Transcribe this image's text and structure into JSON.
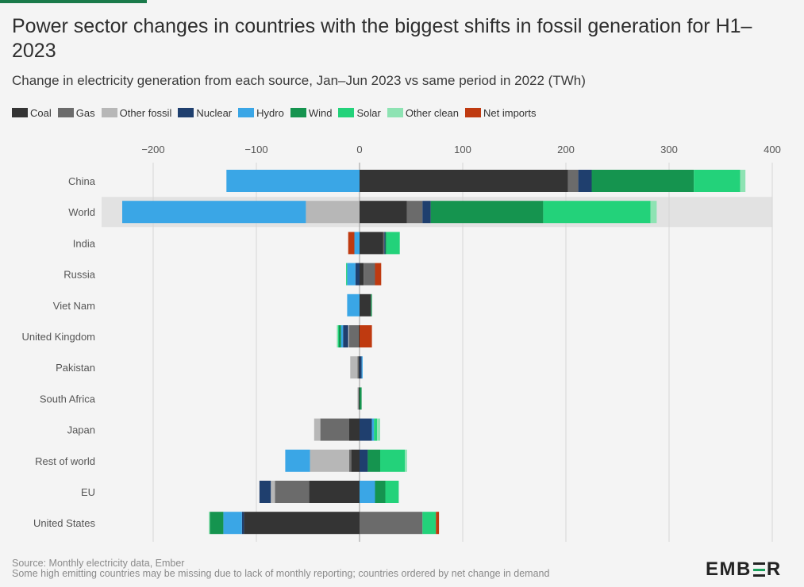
{
  "header": {
    "title": "Power sector changes in countries with the biggest shifts in fossil generation for H1–2023",
    "subtitle": "Change in electricity generation from each source, Jan–Jun 2023 vs same period in 2022 (TWh)"
  },
  "legend": [
    {
      "label": "Coal",
      "color": "#343434"
    },
    {
      "label": "Gas",
      "color": "#6b6b6b"
    },
    {
      "label": "Other fossil",
      "color": "#b7b7b7"
    },
    {
      "label": "Nuclear",
      "color": "#1f3f6e"
    },
    {
      "label": "Hydro",
      "color": "#3aa6e6"
    },
    {
      "label": "Wind",
      "color": "#15944f"
    },
    {
      "label": "Solar",
      "color": "#23d27a"
    },
    {
      "label": "Other clean",
      "color": "#8ee3b3"
    },
    {
      "label": "Net imports",
      "color": "#bf3a10"
    }
  ],
  "colors": {
    "accent_bar": "#1a7a4a",
    "highlight_band": "#e2e2e2",
    "gridline": "#d6d6d6",
    "zero_line": "#9a9a9a",
    "tick_text": "#555555",
    "category_text": "#555555"
  },
  "chart_data": {
    "type": "bar",
    "orientation": "horizontal",
    "stacked": true,
    "title": "Power sector changes in countries with the biggest shifts in fossil generation for H1–2023",
    "xlabel": "",
    "ylabel": "",
    "xlim": [
      -240,
      400
    ],
    "xticks": [
      -200,
      -100,
      0,
      100,
      200,
      300,
      400
    ],
    "tick_labels": [
      "−200",
      "−100",
      "0",
      "100",
      "200",
      "300",
      "400"
    ],
    "grid": true,
    "legend_position": "top-left",
    "highlight_category": "World",
    "categories": [
      "China",
      "World",
      "India",
      "Russia",
      "Viet Nam",
      "United Kingdom",
      "Pakistan",
      "South Africa",
      "Japan",
      "Rest of world",
      "EU",
      "United States"
    ],
    "series": [
      {
        "name": "Coal",
        "values": [
          202,
          46,
          23,
          4,
          11,
          -1,
          -1,
          -1,
          -10,
          -8,
          -49,
          -112
        ]
      },
      {
        "name": "Gas",
        "values": [
          10,
          15,
          1,
          11,
          0,
          -9,
          -1,
          0,
          -28,
          -2,
          -33,
          61
        ]
      },
      {
        "name": "Other fossil",
        "values": [
          0,
          -52,
          0,
          0,
          0,
          -1,
          -7,
          -1,
          -6,
          -38,
          -4,
          0
        ]
      },
      {
        "name": "Nuclear",
        "values": [
          13,
          8,
          1,
          -4,
          0,
          -5,
          2,
          0,
          12,
          8,
          -11,
          -2
        ]
      },
      {
        "name": "Hydro",
        "values": [
          -129,
          -178,
          -5,
          -8,
          -12,
          -2,
          1,
          0,
          2,
          -24,
          15,
          -18
        ]
      },
      {
        "name": "Wind",
        "values": [
          99,
          109,
          1,
          0,
          1,
          -2,
          0,
          2,
          0,
          12,
          10,
          -13
        ]
      },
      {
        "name": "Solar",
        "values": [
          45,
          104,
          13,
          -1,
          0,
          -1,
          0,
          0,
          3,
          24,
          13,
          13
        ]
      },
      {
        "name": "Other clean",
        "values": [
          5,
          6,
          0,
          0,
          0,
          -1,
          0,
          0,
          3,
          2,
          0,
          -1
        ]
      },
      {
        "name": "Net imports",
        "values": [
          0,
          0,
          -6,
          6,
          0,
          12,
          0,
          0,
          0,
          0,
          0,
          3
        ]
      }
    ]
  },
  "footer": {
    "source": "Source: Monthly electricity data, Ember",
    "note": "Some high emitting countries may be missing due to lack of monthly reporting; countries ordered by net change in demand"
  },
  "brand": {
    "logo_left": "EMB",
    "logo_right": "R"
  }
}
